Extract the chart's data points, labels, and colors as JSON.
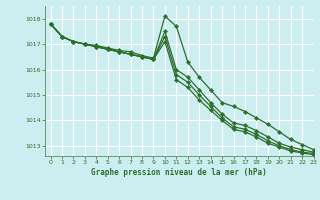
{
  "title": "Graphe pression niveau de la mer (hPa)",
  "background_color": "#cceef0",
  "grid_color": "#ffffff",
  "line_color": "#2d6e2d",
  "xlim": [
    -0.5,
    23
  ],
  "ylim": [
    1012.6,
    1018.5
  ],
  "yticks": [
    1013,
    1014,
    1015,
    1016,
    1017,
    1018
  ],
  "xticks": [
    0,
    1,
    2,
    3,
    4,
    5,
    6,
    7,
    8,
    9,
    10,
    11,
    12,
    13,
    14,
    15,
    16,
    17,
    18,
    19,
    20,
    21,
    22,
    23
  ],
  "series": [
    [
      1017.8,
      1017.3,
      1017.1,
      1017.0,
      1016.95,
      1016.85,
      1016.75,
      1016.7,
      1016.55,
      1016.45,
      1018.1,
      1017.7,
      1016.3,
      1015.7,
      1015.2,
      1014.7,
      1014.55,
      1014.35,
      1014.1,
      1013.85,
      1013.55,
      1013.25,
      1013.05,
      1012.85
    ],
    [
      1017.8,
      1017.3,
      1017.1,
      1017.0,
      1016.9,
      1016.8,
      1016.7,
      1016.6,
      1016.5,
      1016.4,
      1017.5,
      1016.0,
      1015.7,
      1015.2,
      1014.7,
      1014.25,
      1013.9,
      1013.8,
      1013.6,
      1013.35,
      1013.1,
      1012.95,
      1012.85,
      1012.75
    ],
    [
      1017.8,
      1017.3,
      1017.1,
      1017.0,
      1016.9,
      1016.8,
      1016.7,
      1016.6,
      1016.5,
      1016.4,
      1017.3,
      1015.8,
      1015.5,
      1015.0,
      1014.55,
      1014.1,
      1013.75,
      1013.65,
      1013.45,
      1013.2,
      1013.0,
      1012.85,
      1012.75,
      1012.7
    ],
    [
      1017.8,
      1017.3,
      1017.1,
      1017.0,
      1016.9,
      1016.8,
      1016.7,
      1016.6,
      1016.5,
      1016.4,
      1017.1,
      1015.6,
      1015.3,
      1014.8,
      1014.4,
      1014.0,
      1013.65,
      1013.55,
      1013.35,
      1013.1,
      1012.95,
      1012.8,
      1012.72,
      1012.65
    ]
  ]
}
